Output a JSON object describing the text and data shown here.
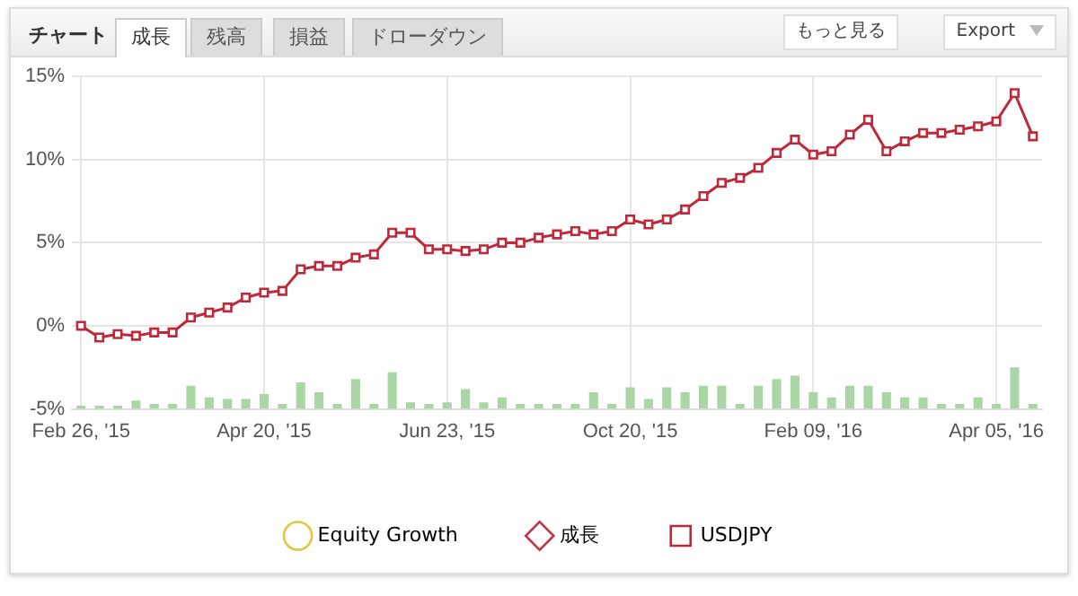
{
  "chart_data": {
    "type": "line",
    "title": "チャート",
    "annotations": [
      "成長",
      "残高",
      "損益",
      "ドローダウン",
      "もっと見る",
      "Export"
    ],
    "categories": [
      "Feb 26, '15",
      null,
      null,
      null,
      null,
      null,
      null,
      null,
      null,
      null,
      "Apr 20, '15",
      null,
      null,
      null,
      null,
      null,
      null,
      null,
      null,
      null,
      "Jun 23, '15",
      null,
      null,
      null,
      null,
      null,
      null,
      null,
      null,
      null,
      "Oct 20, '15",
      null,
      null,
      null,
      null,
      null,
      null,
      null,
      null,
      null,
      "Feb 09, '16",
      null,
      null,
      null,
      null,
      null,
      null,
      null,
      null,
      null,
      "Apr 05, '16",
      null,
      null
    ],
    "series": [
      {
        "name": "Equity Growth",
        "color": "#e6c53c",
        "marker": "circle",
        "values": [
          null,
          null,
          null,
          null,
          null,
          null,
          null,
          null,
          null,
          null,
          null,
          null,
          null,
          null,
          null,
          null,
          null,
          null,
          null,
          null,
          null,
          null,
          null,
          null,
          null,
          null,
          null,
          null,
          null,
          null,
          null,
          null,
          null,
          null,
          null,
          null,
          null,
          null,
          null,
          null,
          null,
          null,
          null,
          null,
          null,
          null,
          null,
          null,
          null,
          null,
          null,
          null,
          null
        ]
      },
      {
        "name": "成長",
        "color": "#c2364a",
        "marker": "diamond",
        "values": [
          null,
          null,
          null,
          null,
          null,
          null,
          null,
          null,
          null,
          null,
          null,
          null,
          null,
          null,
          null,
          null,
          null,
          null,
          null,
          null,
          null,
          null,
          null,
          null,
          null,
          null,
          null,
          null,
          null,
          null,
          null,
          null,
          null,
          null,
          null,
          null,
          null,
          null,
          null,
          null,
          null,
          null,
          null,
          null,
          null,
          null,
          null,
          null,
          null,
          null,
          null,
          null,
          null
        ]
      },
      {
        "name": "USDJPY",
        "color": "#c0283a",
        "marker": "square",
        "values": [
          0,
          -0.7,
          -0.5,
          -0.6,
          -0.4,
          -0.4,
          0.5,
          0.8,
          1.1,
          1.7,
          2.0,
          2.1,
          3.4,
          3.6,
          3.6,
          4.1,
          4.3,
          5.6,
          5.6,
          4.6,
          4.6,
          4.5,
          4.6,
          5.0,
          5.0,
          5.3,
          5.5,
          5.7,
          5.5,
          5.7,
          6.4,
          6.1,
          6.4,
          7.0,
          7.8,
          8.6,
          8.9,
          9.5,
          10.4,
          11.2,
          10.3,
          10.5,
          11.5,
          12.4,
          10.5,
          11.1,
          11.6,
          11.6,
          11.8,
          12.0,
          12.3,
          14.0,
          11.4
        ]
      },
      {
        "type": "bar",
        "color": "#a9d6a4",
        "base": [
          -5,
          -5,
          -5,
          -5,
          -5,
          -5,
          -5,
          -5,
          -5,
          -5,
          -5,
          -5,
          -5,
          -5,
          -5,
          -5,
          -5,
          -5,
          -5,
          -5,
          -5,
          -5,
          -5,
          -5,
          -5,
          -5,
          -5,
          -5,
          -5,
          -5,
          -5,
          -5,
          -5,
          -5,
          -5,
          -5,
          -5,
          -5,
          -5,
          -5,
          -5,
          -5,
          -5,
          -5,
          -5,
          -5,
          -5,
          -5,
          -5,
          -5,
          -5,
          -5,
          -5
        ],
        "values": [
          0.2,
          0.2,
          0.2,
          0.5,
          0.3,
          0.3,
          1.4,
          0.7,
          0.6,
          0.6,
          0.9,
          0.3,
          1.6,
          1.0,
          0.3,
          1.8,
          0.3,
          2.2,
          0.4,
          0.3,
          0.4,
          1.2,
          0.4,
          0.7,
          0.3,
          0.3,
          0.3,
          0.3,
          1.0,
          0.3,
          1.3,
          0.6,
          1.3,
          1.0,
          1.4,
          1.4,
          0.3,
          1.4,
          1.8,
          2.0,
          1.0,
          0.7,
          1.4,
          1.4,
          1.0,
          0.7,
          0.7,
          0.3,
          0.3,
          0.7,
          0.3,
          2.5,
          0.3
        ]
      }
    ],
    "ylim": [
      -5,
      15
    ],
    "yticks": [
      {
        "value": -5,
        "label": "-5%"
      },
      {
        "value": 0,
        "label": "0%"
      },
      {
        "value": 5,
        "label": "5%"
      },
      {
        "value": 10,
        "label": "10%"
      },
      {
        "value": 15,
        "label": "15%"
      }
    ],
    "grid": true,
    "legend": "bottom",
    "line_style": "solid"
  }
}
